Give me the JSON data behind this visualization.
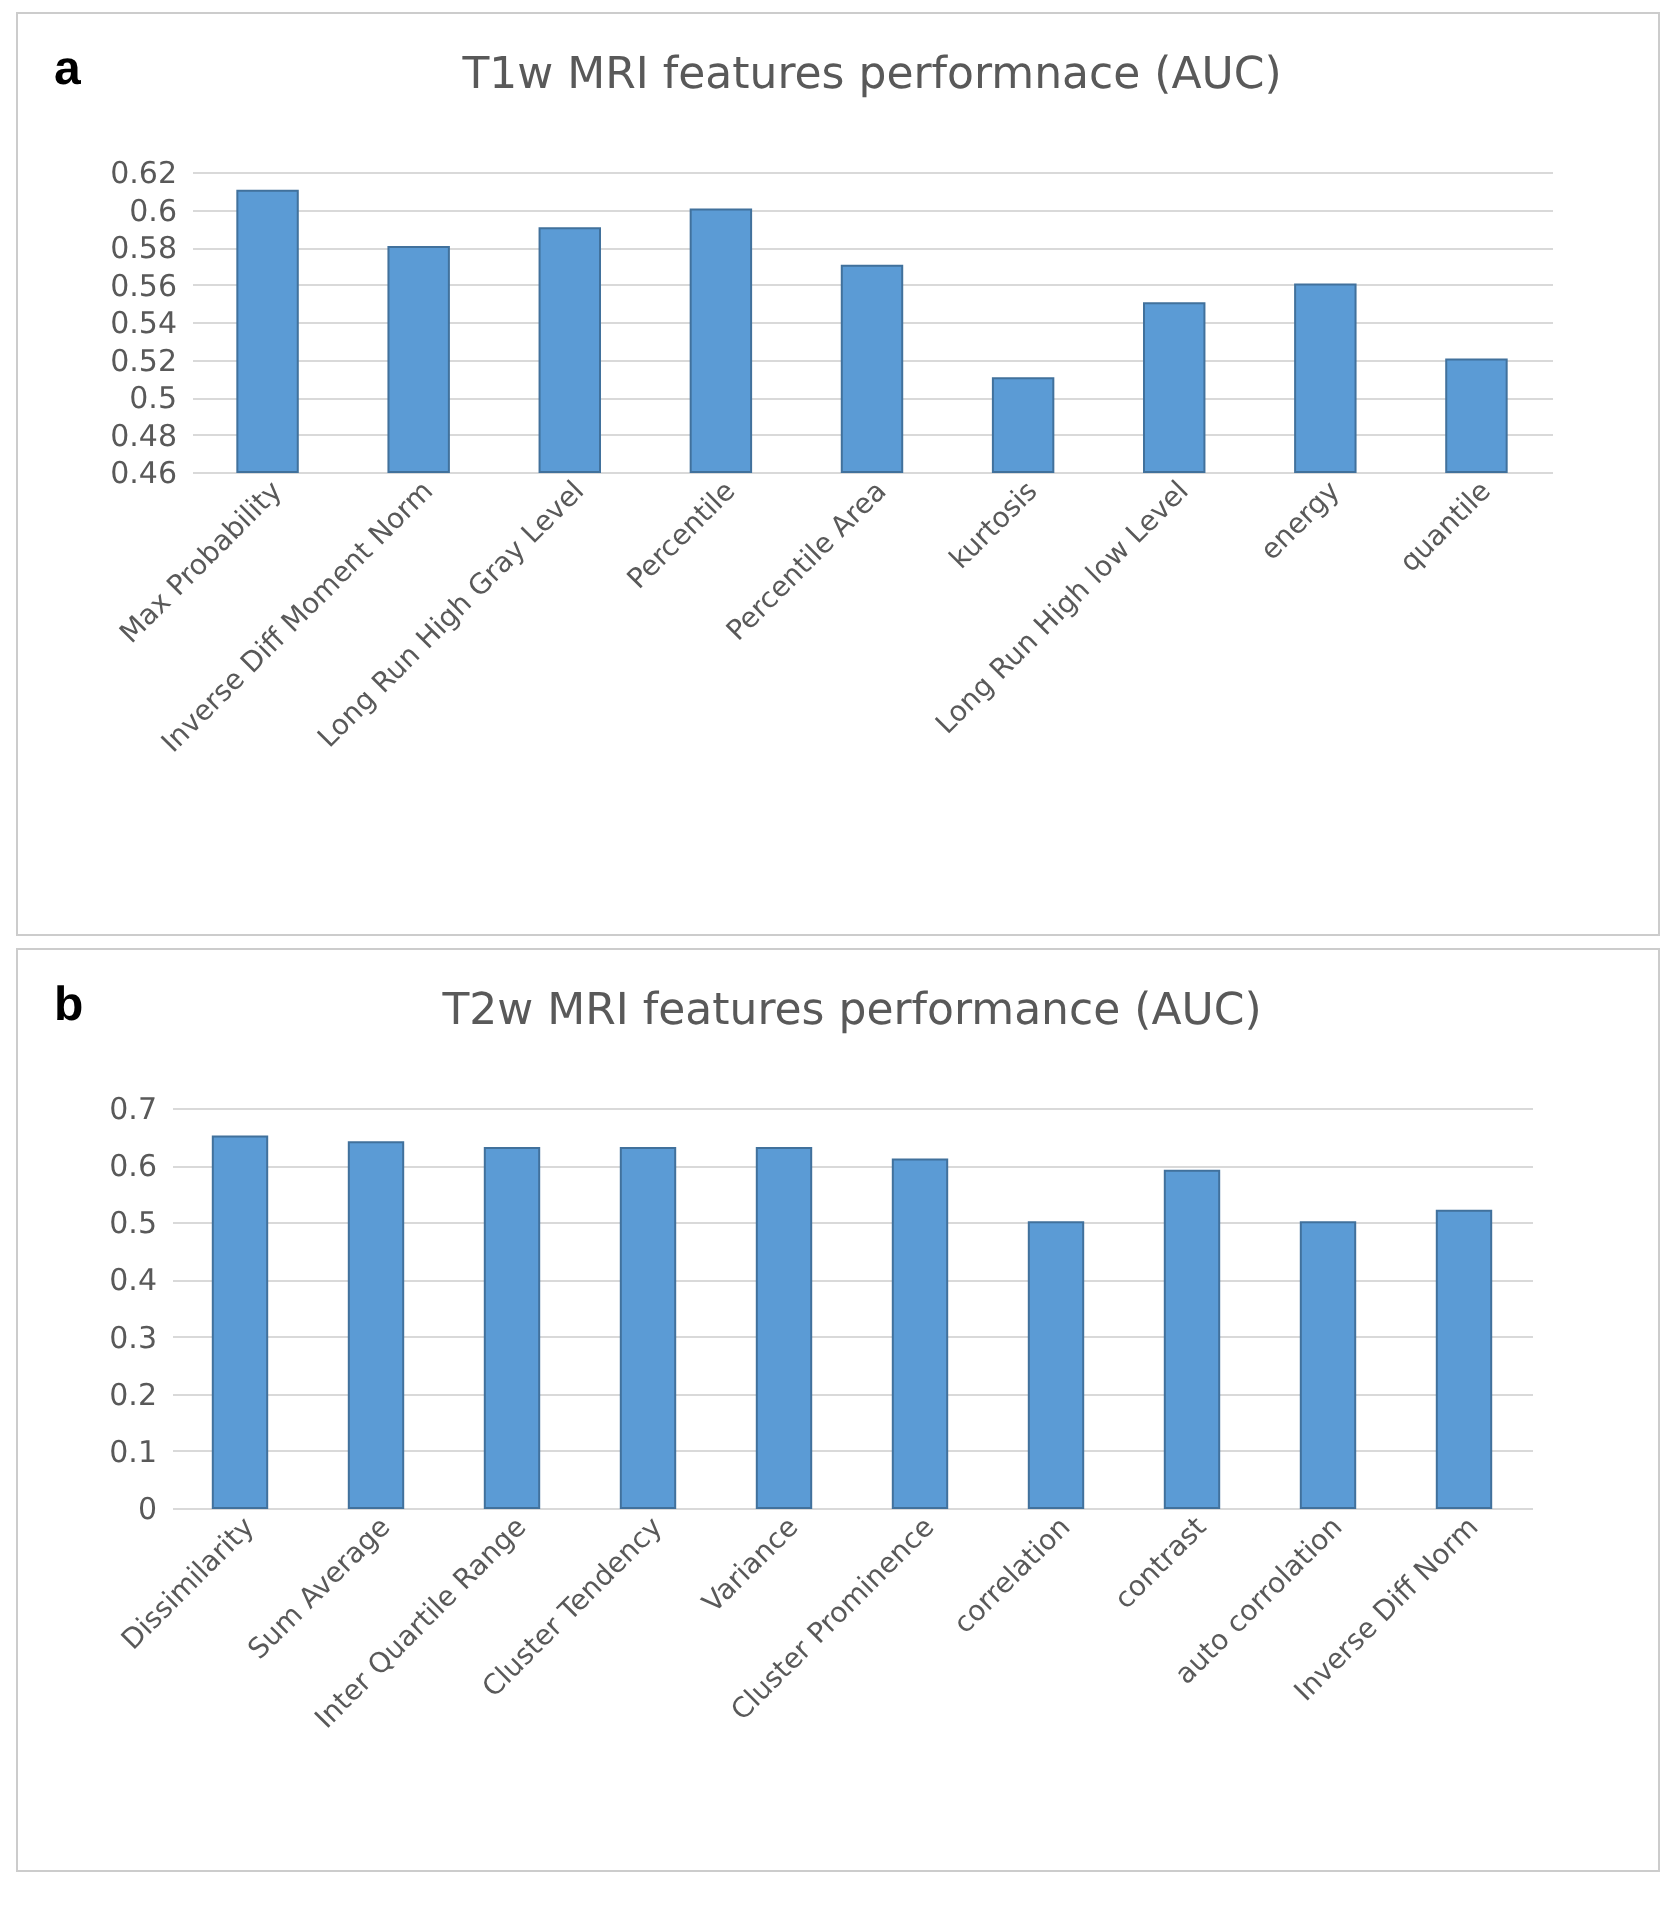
{
  "chart_data": [
    {
      "type": "bar",
      "title": "T1w MRI features performnace (AUC)",
      "annotations": [
        "a"
      ],
      "categories": [
        "Max Probability",
        "Inverse Diff Moment Norm",
        "Long Run High Gray Level",
        "Percentile",
        "Percentile Area",
        "kurtosis",
        "Long Run High low Level",
        "energy",
        "quantile"
      ],
      "values": [
        0.61,
        0.58,
        0.59,
        0.6,
        0.57,
        0.51,
        0.55,
        0.56,
        0.52
      ],
      "color": "#5b9bd5",
      "ylim": [
        0.46,
        0.62
      ],
      "yticks": [
        0.46,
        0.48,
        0.5,
        0.52,
        0.54,
        0.56,
        0.58,
        0.6,
        0.62
      ],
      "grid": "y"
    },
    {
      "type": "bar",
      "title": "T2w MRI features performance (AUC)",
      "annotations": [
        "b"
      ],
      "categories": [
        "Dissimilarity",
        "Sum Average",
        "Inter Quartile Range",
        "Cluster Tendency",
        "Variance",
        "Cluster Prominence",
        "correlation",
        "contrast",
        "auto corrolation",
        "Inverse Diff  Norm"
      ],
      "values": [
        0.65,
        0.64,
        0.63,
        0.63,
        0.63,
        0.61,
        0.5,
        0.59,
        0.5,
        0.52
      ],
      "color": "#5b9bd5",
      "ylim": [
        0,
        0.7
      ],
      "yticks": [
        0,
        0.1,
        0.2,
        0.3,
        0.4,
        0.5,
        0.6,
        0.7
      ],
      "grid": "y"
    }
  ]
}
